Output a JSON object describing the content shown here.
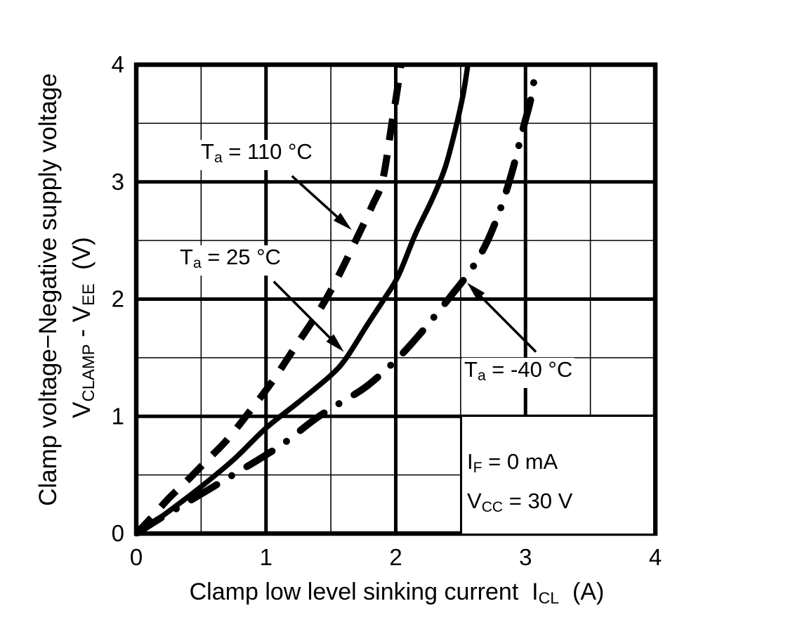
{
  "figure": {
    "background": "#ffffff",
    "ink_color": "#000000"
  },
  "chart_data": {
    "type": "line",
    "title": "",
    "xlabel": "Clamp low level sinking current  ICL  (A)",
    "xlabel_parts": {
      "main": "Clamp low level sinking current  I",
      "sub": "CL",
      "end": "  (A)"
    },
    "ylabel_line1": "Clamp voltage−Negative supply voltage",
    "ylabel_line2": "VCLAMP - VEE  (V)",
    "ylabel_line2_parts": {
      "v1": "V",
      "s1": "CLAMP",
      "mid": " - V",
      "s2": "EE",
      "end": "  (V)"
    },
    "xlim": [
      0,
      4
    ],
    "ylim": [
      0,
      4
    ],
    "x_ticks": [
      0,
      1,
      2,
      3,
      4
    ],
    "y_ticks": [
      0,
      1,
      2,
      3,
      4
    ],
    "minor_grid_step": 0.5,
    "grid": "major and minor gridlines, black on white",
    "legend_position": "inline annotations with arrows",
    "series": [
      {
        "name": "Ta = 110 °C",
        "style": "dashed",
        "color": "#000000",
        "label_parts": {
          "sym": "T",
          "sub": "a",
          "rest": " = 110 °C"
        },
        "arrow": {
          "from_xy": [
            1.2,
            3.05
          ],
          "to_xy": [
            1.66,
            2.59
          ]
        },
        "points": [
          [
            0,
            0
          ],
          [
            0.12,
            0.14
          ],
          [
            0.25,
            0.3
          ],
          [
            0.4,
            0.46
          ],
          [
            0.55,
            0.63
          ],
          [
            0.7,
            0.8
          ],
          [
            0.88,
            1.05
          ],
          [
            1.05,
            1.3
          ],
          [
            1.23,
            1.6
          ],
          [
            1.42,
            1.92
          ],
          [
            1.56,
            2.2
          ],
          [
            1.7,
            2.52
          ],
          [
            1.82,
            2.8
          ],
          [
            1.9,
            3.02
          ],
          [
            1.97,
            3.5
          ],
          [
            2.0,
            3.7
          ],
          [
            2.04,
            4.0
          ]
        ]
      },
      {
        "name": "Ta = 25 °C",
        "style": "solid",
        "color": "#000000",
        "label_parts": {
          "sym": "T",
          "sub": "a",
          "rest": " = 25 °C"
        },
        "arrow": {
          "from_xy": [
            1.06,
            2.15
          ],
          "to_xy": [
            1.6,
            1.55
          ]
        },
        "points": [
          [
            0,
            0
          ],
          [
            0.15,
            0.11
          ],
          [
            0.3,
            0.23
          ],
          [
            0.5,
            0.4
          ],
          [
            0.75,
            0.63
          ],
          [
            1.0,
            0.9
          ],
          [
            1.25,
            1.12
          ],
          [
            1.5,
            1.35
          ],
          [
            1.62,
            1.5
          ],
          [
            1.78,
            1.78
          ],
          [
            1.91,
            2.0
          ],
          [
            2.02,
            2.2
          ],
          [
            2.15,
            2.55
          ],
          [
            2.28,
            2.85
          ],
          [
            2.38,
            3.12
          ],
          [
            2.46,
            3.45
          ],
          [
            2.52,
            3.75
          ],
          [
            2.56,
            4.03
          ]
        ]
      },
      {
        "name": "Ta = -40 °C",
        "style": "dashdot",
        "color": "#000000",
        "label_parts": {
          "sym": "T",
          "sub": "a",
          "rest": " = -40 °C"
        },
        "arrow": {
          "from_xy": [
            3.08,
            1.55
          ],
          "to_xy": [
            2.55,
            2.14
          ]
        },
        "points": [
          [
            0,
            0
          ],
          [
            0.2,
            0.14
          ],
          [
            0.43,
            0.29
          ],
          [
            0.7,
            0.47
          ],
          [
            0.97,
            0.65
          ],
          [
            1.15,
            0.78
          ],
          [
            1.37,
            0.97
          ],
          [
            1.55,
            1.1
          ],
          [
            1.78,
            1.26
          ],
          [
            2.02,
            1.5
          ],
          [
            2.2,
            1.72
          ],
          [
            2.42,
            2.02
          ],
          [
            2.58,
            2.25
          ],
          [
            2.7,
            2.48
          ],
          [
            2.81,
            2.78
          ],
          [
            2.9,
            3.1
          ],
          [
            2.98,
            3.45
          ],
          [
            3.04,
            3.7
          ],
          [
            3.07,
            3.9
          ]
        ]
      }
    ],
    "conditions_box": {
      "lines": [
        {
          "sym": "I",
          "sub": "F",
          "rest": " = 0 mA"
        },
        {
          "sym": "V",
          "sub": "CC",
          "rest": " = 30 V"
        }
      ]
    }
  }
}
